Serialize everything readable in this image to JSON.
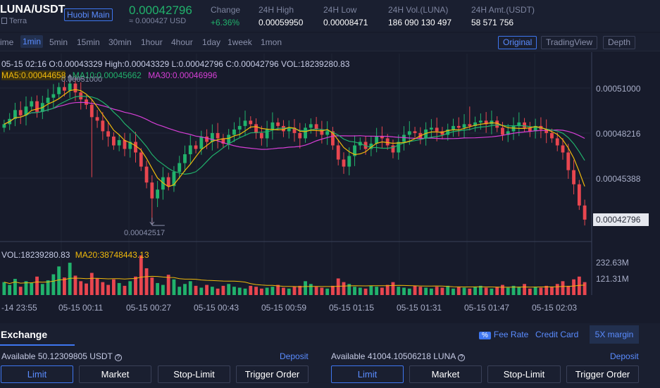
{
  "header": {
    "pair": "LUNA/USDT",
    "badge": "Huobi Main",
    "network": "Terra",
    "price": "0.00042796",
    "price_usd": "≈ 0.000427 USD",
    "stats": [
      {
        "label": "Change",
        "value": "+6.36%"
      },
      {
        "label": "24H High",
        "value": "0.00059950"
      },
      {
        "label": "24H Low",
        "value": "0.00008471"
      },
      {
        "label": "24H Vol.(LUNA)",
        "value": "186 090 130 497"
      },
      {
        "label": "24H Amt.(USDT)",
        "value": "58 571 756"
      }
    ]
  },
  "toolbar": {
    "intervals": [
      "ime",
      "1min",
      "5min",
      "15min",
      "30min",
      "1hour",
      "4hour",
      "1day",
      "1week",
      "1mon"
    ],
    "active_interval": "1min",
    "views": [
      "Original",
      "TradingView",
      "Depth"
    ],
    "active_view": "Original"
  },
  "colors": {
    "up": "#21b26c",
    "down": "#e8464f",
    "ma5": "#f0b90b",
    "ma10": "#21b26c",
    "ma30": "#d63fd6",
    "accent": "#3e76f0"
  },
  "chart_data": {
    "type": "candlestick",
    "ohlc_line": "05-15 02:16   O:0.00043329  High:0.00043329  L:0.00042796  C:0.00042796  VOL:18239280.83",
    "ma_labels": {
      "ma5": "MA5:0.00044658",
      "ma10": "MA10:0.00045662",
      "ma30": "MA30:0.00046996"
    },
    "high_marker": "0.00051000",
    "low_marker": "0.00042517",
    "y_ticks": [
      "0.00051000",
      "0.00048216",
      "0.00045388"
    ],
    "last_price": "0.00042796",
    "vol_label": "VOL:18239280.83",
    "vol_ma_label": "MA20:38748443.13",
    "vol_ticks": [
      "232.63M",
      "121.31M"
    ],
    "x_ticks": [
      "-14 23:55",
      "05-15 00:11",
      "05-15 00:27",
      "05-15 00:43",
      "05-15 00:59",
      "05-15 01:15",
      "05-15 01:31",
      "05-15 01:47",
      "05-15 02:03"
    ],
    "ylim": [
      0.000416,
      0.000522
    ],
    "candle_close": [
      0.000482,
      0.000485,
      0.00049,
      0.000487,
      0.000492,
      0.000495,
      0.000489,
      0.000494,
      0.000497,
      0.000499,
      0.000503,
      0.000501,
      0.000505,
      0.0005,
      0.000496,
      0.000493,
      0.000486,
      0.000484,
      0.000478,
      0.000475,
      0.00047,
      0.000473,
      0.000468,
      0.000472,
      0.000466,
      0.000458,
      0.000449,
      0.00044,
      0.000445,
      0.000452,
      0.000447,
      0.000455,
      0.00046,
      0.000465,
      0.00047,
      0.000468,
      0.000475,
      0.000472,
      0.000477,
      0.000474,
      0.000471,
      0.000476,
      0.000479,
      0.000481,
      0.000484,
      0.000482,
      0.000477,
      0.000474,
      0.000479,
      0.000483,
      0.000481,
      0.000478,
      0.00048,
      0.000477,
      0.000474,
      0.00048,
      0.000482,
      0.000479,
      0.000476,
      0.000478,
      0.00047,
      0.000462,
      0.000458,
      0.000464,
      0.00047,
      0.000472,
      0.000468,
      0.000471,
      0.000475,
      0.000474,
      0.00047,
      0.000466,
      0.000472,
      0.000476,
      0.000478,
      0.000477,
      0.000474,
      0.000479,
      0.00048,
      0.000478,
      0.000476,
      0.000479,
      0.000481,
      0.00048,
      0.000482,
      0.000481,
      0.000483,
      0.000484,
      0.000482,
      0.000484,
      0.00048,
      0.000476,
      0.000478,
      0.000481,
      0.000483,
      0.00048,
      0.000478,
      0.000481,
      0.000479,
      0.000477,
      0.000474,
      0.00047,
      0.000466,
      0.000456,
      0.000448,
      0.000436,
      0.000428
    ],
    "volume": [
      28,
      22,
      35,
      18,
      30,
      26,
      40,
      24,
      32,
      45,
      62,
      38,
      70,
      42,
      30,
      25,
      48,
      36,
      28,
      22,
      34,
      26,
      20,
      30,
      40,
      86,
      58,
      38,
      26,
      22,
      44,
      34,
      18,
      24,
      30,
      20,
      16,
      22,
      18,
      14,
      20,
      24,
      18,
      16,
      14,
      20,
      18,
      14,
      16,
      18,
      22,
      16,
      14,
      18,
      20,
      30,
      24,
      18,
      16,
      14,
      20,
      36,
      28,
      24,
      18,
      16,
      14,
      20,
      18,
      16,
      22,
      28,
      18,
      16,
      14,
      20,
      18,
      16,
      14,
      18,
      16,
      20,
      14,
      18,
      16,
      14,
      18,
      20,
      16,
      14,
      18,
      22,
      16,
      20,
      18,
      24,
      14,
      18,
      16,
      20,
      18,
      24,
      30,
      20,
      34,
      40,
      28
    ]
  },
  "exchange": {
    "title": "Exchange",
    "fee_pct": "%",
    "fee_label": "Fee Rate",
    "credit_label": "Credit Card",
    "margin_label": "5X margin",
    "left_available": "Available  50.12309805 USDT",
    "right_available": "Available  41004.10506218 LUNA",
    "deposit_label": "Deposit",
    "order_types": [
      "Limit",
      "Market",
      "Stop-Limit",
      "Trigger Order"
    ]
  }
}
